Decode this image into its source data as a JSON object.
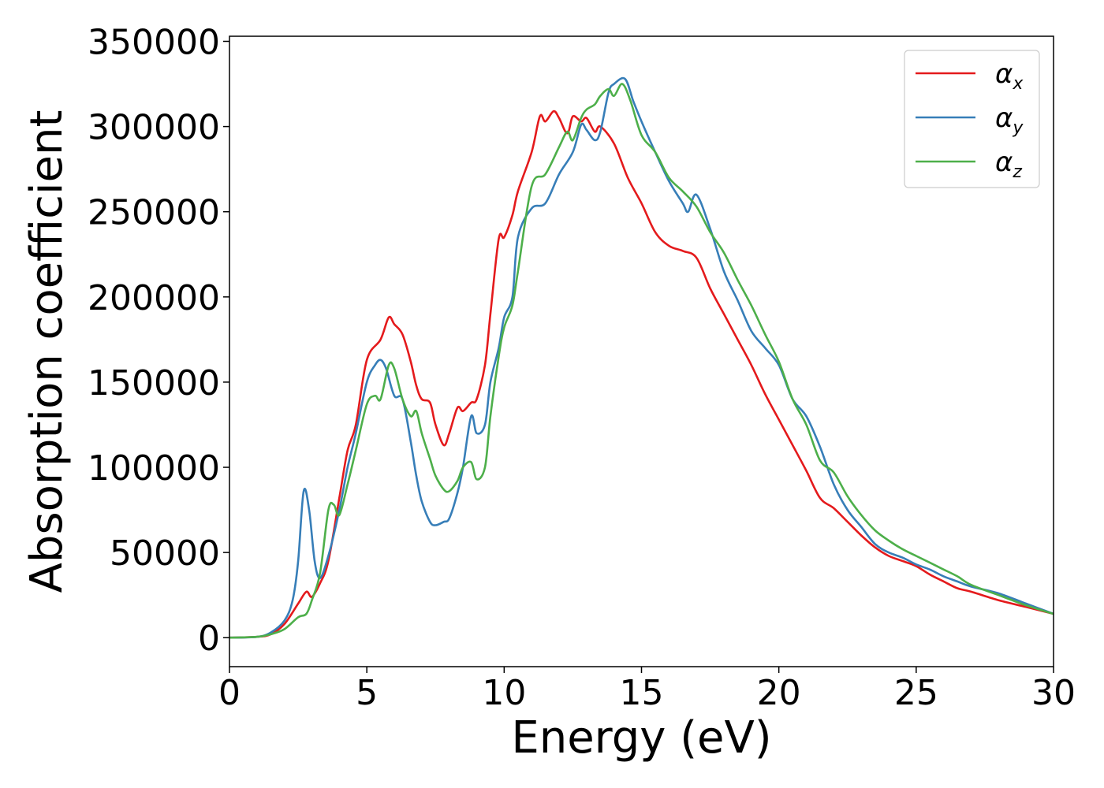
{
  "chart_data": {
    "type": "line",
    "title": "",
    "xlabel": "Energy (eV)",
    "ylabel": "Absorption coefficient",
    "xlim": [
      0,
      30
    ],
    "ylim": [
      -17000,
      353000
    ],
    "xticks": [
      0,
      5,
      10,
      15,
      20,
      25,
      30
    ],
    "xtick_labels": [
      "0",
      "5",
      "10",
      "15",
      "20",
      "25",
      "30"
    ],
    "yticks": [
      0,
      50000,
      100000,
      150000,
      200000,
      250000,
      300000,
      350000
    ],
    "ytick_labels": [
      "0",
      "50000",
      "100000",
      "150000",
      "200000",
      "250000",
      "300000",
      "350000"
    ],
    "grid": false,
    "legend_position": "top-right",
    "series": [
      {
        "name": "αx",
        "symbol": "α",
        "subscript": "x",
        "color": "#e41a1c",
        "x": [
          0,
          1,
          1.5,
          2,
          2.5,
          2.8,
          3.0,
          3.3,
          3.6,
          4.0,
          4.3,
          4.6,
          5.0,
          5.5,
          5.8,
          6.0,
          6.3,
          6.6,
          6.8,
          7.0,
          7.3,
          7.5,
          7.8,
          8.0,
          8.3,
          8.5,
          8.8,
          9.0,
          9.3,
          9.5,
          9.8,
          10.0,
          10.3,
          10.5,
          11.0,
          11.3,
          11.5,
          11.8,
          12.0,
          12.3,
          12.5,
          12.8,
          13.0,
          13.3,
          13.5,
          14.0,
          14.5,
          15.0,
          15.5,
          16.0,
          16.5,
          17.0,
          17.5,
          18.0,
          18.5,
          19.0,
          19.5,
          20.0,
          20.5,
          21.0,
          21.5,
          22.0,
          22.5,
          23.0,
          23.5,
          24.0,
          24.5,
          25.0,
          25.5,
          26.0,
          26.5,
          27.0,
          28.0,
          29.0,
          30.0
        ],
        "values": [
          0,
          500,
          2000,
          8000,
          20000,
          27000,
          24000,
          32000,
          45000,
          82000,
          110000,
          125000,
          163000,
          175000,
          188000,
          184000,
          178000,
          162000,
          148000,
          140000,
          138000,
          125000,
          113000,
          120000,
          135000,
          133000,
          138000,
          140000,
          160000,
          190000,
          234000,
          235000,
          248000,
          262000,
          285000,
          306000,
          303000,
          309000,
          305000,
          296000,
          306000,
          303000,
          305000,
          297000,
          300000,
          290000,
          270000,
          255000,
          238000,
          230000,
          227000,
          223000,
          205000,
          190000,
          175000,
          160000,
          143000,
          128000,
          113000,
          98000,
          82000,
          76000,
          68000,
          60000,
          53000,
          48000,
          45000,
          42000,
          37000,
          33000,
          29000,
          27000,
          22000,
          18000,
          14000
        ]
      },
      {
        "name": "αy",
        "symbol": "α",
        "subscript": "y",
        "color": "#377eb8",
        "x": [
          0,
          1,
          1.5,
          2,
          2.3,
          2.5,
          2.7,
          2.9,
          3.1,
          3.3,
          3.6,
          4.0,
          4.3,
          4.6,
          5.0,
          5.3,
          5.5,
          5.7,
          6.0,
          6.3,
          6.6,
          6.8,
          7.0,
          7.3,
          7.5,
          7.8,
          8.0,
          8.3,
          8.5,
          8.8,
          9.0,
          9.3,
          9.5,
          9.8,
          10.0,
          10.3,
          10.5,
          11.0,
          11.5,
          12.0,
          12.5,
          12.8,
          13.0,
          13.3,
          13.5,
          13.8,
          14.0,
          14.4,
          14.7,
          15.0,
          15.5,
          16.0,
          16.5,
          16.7,
          17.0,
          17.5,
          18.0,
          18.5,
          19.0,
          19.5,
          20.0,
          20.5,
          21.0,
          21.5,
          22.0,
          22.5,
          23.0,
          23.5,
          24.0,
          24.5,
          25.0,
          25.5,
          26.0,
          26.5,
          27.0,
          28.0,
          29.0,
          30.0
        ],
        "values": [
          0,
          500,
          3000,
          10000,
          22000,
          45000,
          86000,
          75000,
          45000,
          35000,
          48000,
          75000,
          100000,
          120000,
          150000,
          160000,
          163000,
          158000,
          142000,
          140000,
          115000,
          95000,
          80000,
          68000,
          66000,
          68000,
          70000,
          85000,
          100000,
          130000,
          120000,
          125000,
          150000,
          170000,
          188000,
          200000,
          235000,
          252000,
          255000,
          272000,
          285000,
          301000,
          298000,
          292000,
          297000,
          320000,
          325000,
          328000,
          315000,
          303000,
          285000,
          268000,
          255000,
          250000,
          260000,
          240000,
          215000,
          198000,
          180000,
          170000,
          160000,
          140000,
          130000,
          112000,
          90000,
          75000,
          65000,
          55000,
          50000,
          47000,
          43000,
          40000,
          36000,
          33000,
          30000,
          26000,
          20000,
          14000
        ]
      },
      {
        "name": "αz",
        "symbol": "α",
        "subscript": "z",
        "color": "#4daf4a",
        "x": [
          0,
          1,
          1.5,
          2,
          2.5,
          2.8,
          3.0,
          3.3,
          3.6,
          3.8,
          4.0,
          4.3,
          4.6,
          5.0,
          5.3,
          5.5,
          5.8,
          6.0,
          6.3,
          6.6,
          6.8,
          7.0,
          7.3,
          7.5,
          7.8,
          8.0,
          8.3,
          8.5,
          8.8,
          9.0,
          9.3,
          9.5,
          9.8,
          10.0,
          10.3,
          10.5,
          11.0,
          11.5,
          12.0,
          12.3,
          12.5,
          12.8,
          13.0,
          13.3,
          13.5,
          13.8,
          14.0,
          14.3,
          14.6,
          15.0,
          15.5,
          16.0,
          16.5,
          17.0,
          17.5,
          18.0,
          18.5,
          19.0,
          19.5,
          20.0,
          20.5,
          21.0,
          21.5,
          22.0,
          22.5,
          23.0,
          23.5,
          24.0,
          24.5,
          25.0,
          25.5,
          26.0,
          26.5,
          27.0,
          28.0,
          29.0,
          30.0
        ],
        "values": [
          0,
          500,
          2000,
          5000,
          12000,
          14000,
          22000,
          38000,
          75000,
          78000,
          72000,
          90000,
          110000,
          137000,
          142000,
          140000,
          160000,
          158000,
          140000,
          130000,
          133000,
          120000,
          105000,
          95000,
          87000,
          86000,
          92000,
          100000,
          103000,
          93000,
          100000,
          130000,
          165000,
          182000,
          195000,
          215000,
          265000,
          272000,
          288000,
          297000,
          292000,
          305000,
          310000,
          313000,
          318000,
          322000,
          318000,
          325000,
          315000,
          295000,
          285000,
          270000,
          262000,
          253000,
          238000,
          226000,
          210000,
          195000,
          178000,
          162000,
          140000,
          125000,
          104000,
          97000,
          83000,
          72000,
          63000,
          57000,
          52000,
          48000,
          44000,
          40000,
          36000,
          31000,
          25000,
          19000,
          14000
        ]
      }
    ]
  }
}
